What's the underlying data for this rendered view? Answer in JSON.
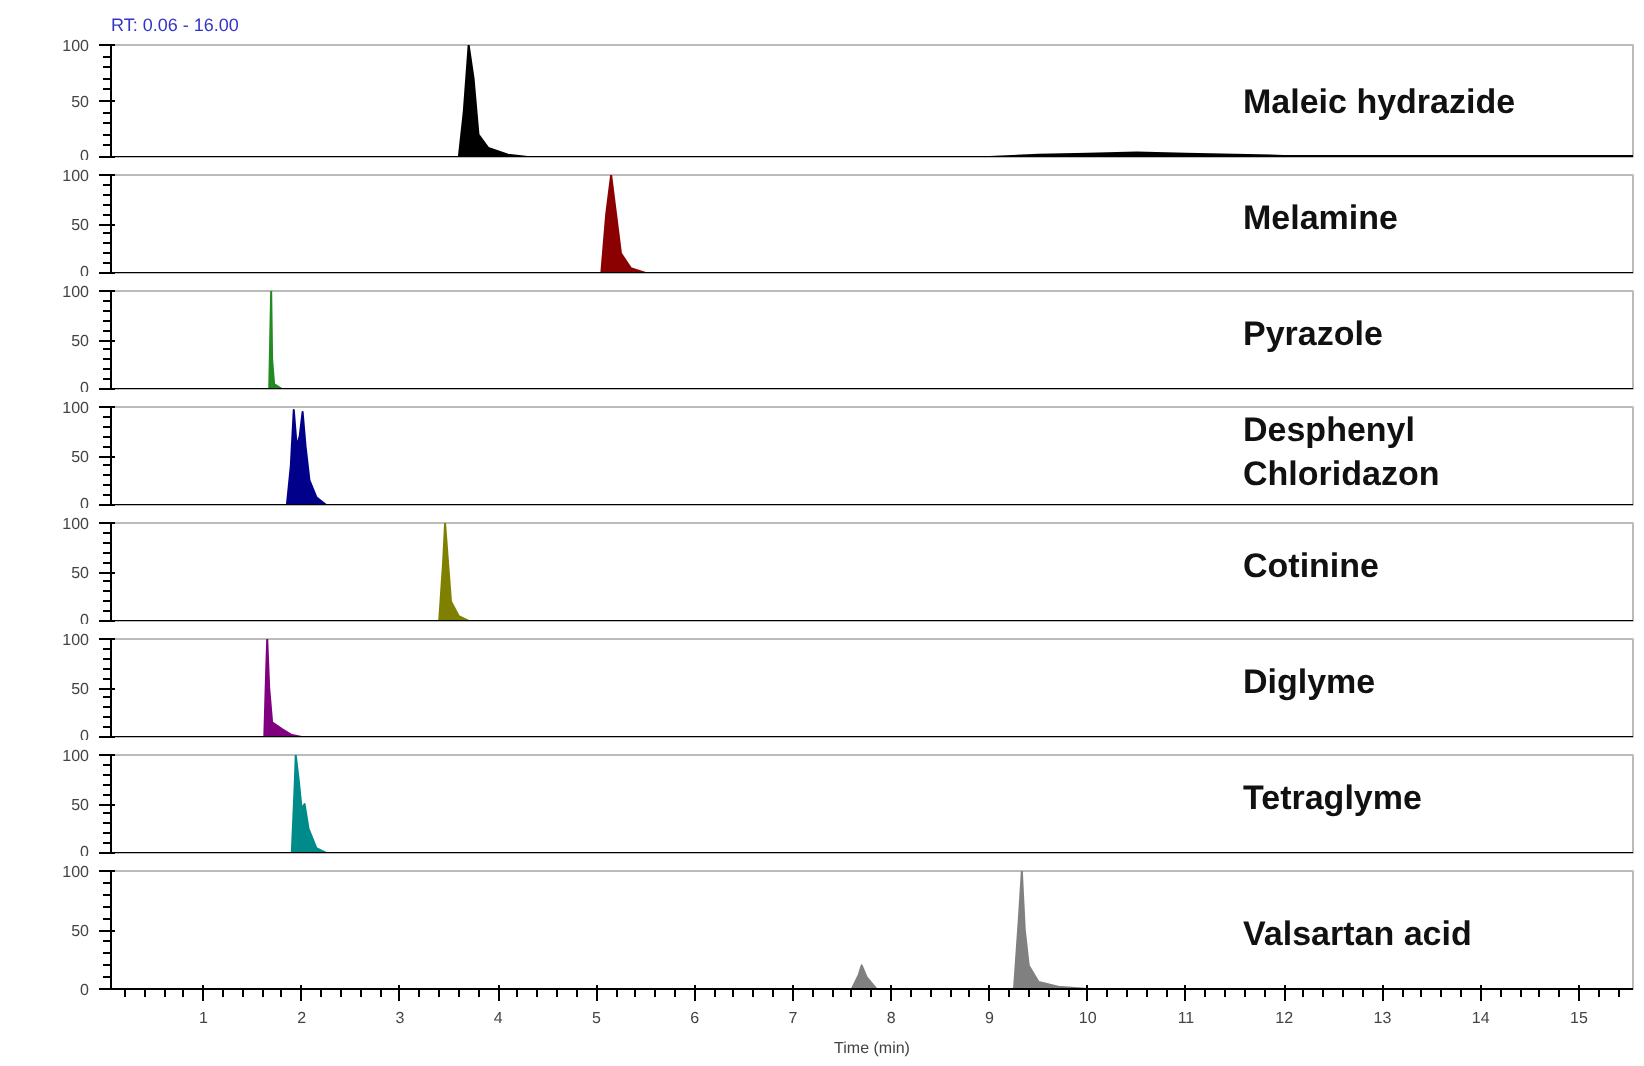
{
  "chart_data": [
    {
      "type": "area",
      "title": "RT: 0.06 - 16.00",
      "xlim": [
        0.06,
        15.55
      ],
      "ylim": [
        0,
        100
      ],
      "yticks": [
        0,
        50,
        100
      ],
      "tick_labels": "y",
      "grid": false,
      "series": [
        {
          "name": "Maleic hydrazide",
          "color": "#000000",
          "x": [
            0.06,
            3.6,
            3.65,
            3.7,
            3.75,
            3.8,
            3.9,
            4.1,
            4.3,
            9.0,
            9.5,
            10.0,
            10.5,
            11.0,
            11.5,
            12.0,
            15.55
          ],
          "values": [
            0,
            0,
            40,
            100,
            70,
            20,
            8,
            2,
            0,
            0,
            2,
            3,
            4,
            3,
            2,
            1,
            1
          ]
        }
      ]
    },
    {
      "type": "area",
      "xlim": [
        0.06,
        15.55
      ],
      "ylim": [
        0,
        100
      ],
      "yticks": [
        0,
        50,
        100
      ],
      "tick_labels": "y",
      "grid": false,
      "series": [
        {
          "name": "Melamine",
          "color": "#8b0000",
          "x": [
            0.06,
            5.05,
            5.1,
            5.15,
            5.2,
            5.25,
            5.35,
            5.5,
            15.55
          ],
          "values": [
            0,
            0,
            60,
            100,
            60,
            20,
            5,
            0,
            0
          ]
        }
      ]
    },
    {
      "type": "area",
      "xlim": [
        0.06,
        15.55
      ],
      "ylim": [
        0,
        100
      ],
      "yticks": [
        0,
        50,
        100
      ],
      "tick_labels": "y",
      "grid": false,
      "series": [
        {
          "name": "Pyrazole",
          "color": "#228b22",
          "x": [
            0.06,
            1.67,
            1.69,
            1.7,
            1.72,
            1.8,
            15.55
          ],
          "values": [
            0,
            0,
            100,
            30,
            5,
            0,
            0
          ]
        }
      ]
    },
    {
      "type": "area",
      "xlim": [
        0.06,
        15.55
      ],
      "ylim": [
        0,
        100
      ],
      "yticks": [
        0,
        50,
        100
      ],
      "tick_labels": "y",
      "grid": false,
      "series": [
        {
          "name": "Desphenyl Chloridazon",
          "color": "#00008b",
          "x": [
            0.06,
            1.85,
            1.89,
            1.92,
            1.95,
            1.98,
            2.01,
            2.04,
            2.08,
            2.15,
            2.25,
            15.55
          ],
          "values": [
            0,
            0,
            40,
            97,
            60,
            70,
            95,
            60,
            25,
            8,
            0,
            0
          ]
        }
      ]
    },
    {
      "type": "area",
      "xlim": [
        0.06,
        15.55
      ],
      "ylim": [
        0,
        100
      ],
      "yticks": [
        0,
        50,
        100
      ],
      "tick_labels": "y",
      "grid": false,
      "series": [
        {
          "name": "Cotinine",
          "color": "#808000",
          "x": [
            0.06,
            3.4,
            3.44,
            3.46,
            3.49,
            3.52,
            3.6,
            3.7,
            15.55
          ],
          "values": [
            0,
            0,
            60,
            100,
            60,
            20,
            5,
            0,
            0
          ]
        }
      ]
    },
    {
      "type": "area",
      "xlim": [
        0.06,
        15.55
      ],
      "ylim": [
        0,
        100
      ],
      "yticks": [
        0,
        50,
        100
      ],
      "tick_labels": "y",
      "grid": false,
      "series": [
        {
          "name": "Diglyme",
          "color": "#800080",
          "x": [
            0.06,
            1.62,
            1.64,
            1.65,
            1.67,
            1.7,
            1.8,
            1.9,
            2.0,
            15.55
          ],
          "values": [
            0,
            0,
            70,
            100,
            50,
            15,
            8,
            2,
            0,
            0
          ]
        }
      ]
    },
    {
      "type": "area",
      "xlim": [
        0.06,
        15.55
      ],
      "ylim": [
        0,
        100
      ],
      "yticks": [
        0,
        50,
        100
      ],
      "tick_labels": "y",
      "grid": false,
      "series": [
        {
          "name": "Tetraglyme",
          "color": "#008b8b",
          "x": [
            0.06,
            1.9,
            1.93,
            1.94,
            1.97,
            2.0,
            2.03,
            2.07,
            2.15,
            2.25,
            15.55
          ],
          "values": [
            0,
            0,
            70,
            100,
            75,
            45,
            50,
            25,
            5,
            0,
            0
          ]
        }
      ]
    },
    {
      "type": "area",
      "xlabel": "Time (min)",
      "xlim": [
        0.06,
        15.55
      ],
      "ylim": [
        0,
        100
      ],
      "xticks": [
        1,
        2,
        3,
        4,
        5,
        6,
        7,
        8,
        9,
        10,
        11,
        12,
        13,
        14,
        15
      ],
      "yticks": [
        0,
        50,
        100
      ],
      "grid": false,
      "series": [
        {
          "name": "Valsartan acid",
          "color": "#808080",
          "x": [
            0.06,
            7.6,
            7.67,
            7.7,
            7.75,
            7.85,
            9.25,
            9.3,
            9.33,
            9.36,
            9.4,
            9.5,
            9.7,
            10.0,
            15.55
          ],
          "values": [
            0,
            0,
            12,
            20,
            10,
            0,
            0,
            60,
            100,
            50,
            20,
            6,
            2,
            0,
            0
          ]
        }
      ]
    }
  ]
}
